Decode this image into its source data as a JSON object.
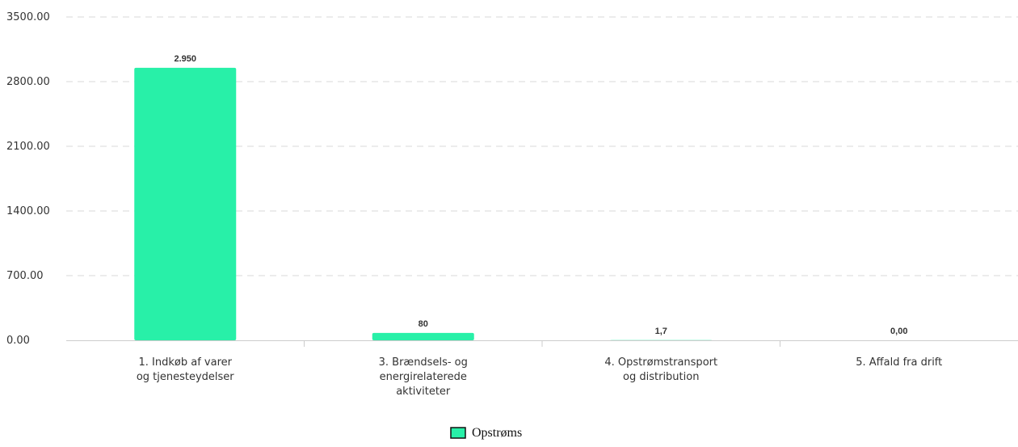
{
  "chart_data": {
    "type": "bar",
    "categories": [
      [
        "1. Indkøb af varer",
        "og tjenesteydelser"
      ],
      [
        "3. Brændsels- og",
        "energirelaterede",
        "aktiviteter"
      ],
      [
        "4. Opstrømstransport",
        "og distribution"
      ],
      [
        "5. Affald fra drift"
      ]
    ],
    "series": [
      {
        "name": "Opstrøms",
        "values": [
          2950,
          80,
          1.7,
          0
        ],
        "labels": [
          "2.950",
          "80",
          "1,7",
          "0,00"
        ]
      }
    ],
    "yticks": [
      "0.00",
      "700.00",
      "1400.00",
      "2100.00",
      "2800.00",
      "3500.00"
    ],
    "ylim": [
      0,
      3500
    ],
    "grid": true,
    "legend_position": "bottom-center",
    "colors": {
      "bar": "#28f0a8",
      "grid": "#d9d9d9",
      "axis": "#cccccc"
    }
  }
}
